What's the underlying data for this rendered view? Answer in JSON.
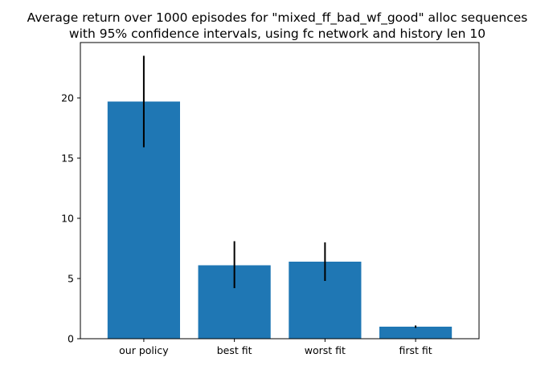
{
  "chart_data": {
    "type": "bar",
    "title": [
      "Average return over 1000 episodes for \"mixed_ff_bad_wf_good\" alloc sequences",
      "with 95% confidence intervals, using fc network and history len 10"
    ],
    "xlabel": "",
    "ylabel": "",
    "categories": [
      "our policy",
      "best fit",
      "worst fit",
      "first fit"
    ],
    "values": [
      19.7,
      6.1,
      6.4,
      1.0
    ],
    "error_low": [
      15.9,
      4.2,
      4.8,
      0.9
    ],
    "error_high": [
      23.5,
      8.1,
      8.0,
      1.1
    ],
    "ylim": [
      0,
      24.6
    ],
    "yticks": [
      0,
      5,
      10,
      15,
      20
    ],
    "bar_color": "#1f77b4",
    "error_color": "#000000",
    "grid": false,
    "legend": "none"
  }
}
